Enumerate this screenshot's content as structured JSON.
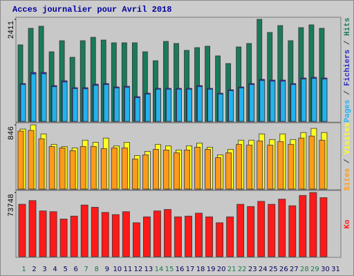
{
  "chart_data": {
    "type": "bar",
    "title": "Acces journalier pour Avril 2018",
    "separator": " / ",
    "categories": [
      "1",
      "2",
      "3",
      "4",
      "5",
      "6",
      "7",
      "8",
      "9",
      "10",
      "11",
      "12",
      "13",
      "14",
      "15",
      "16",
      "17",
      "18",
      "19",
      "20",
      "21",
      "22",
      "23",
      "24",
      "25",
      "26",
      "27",
      "28",
      "29",
      "30",
      "31"
    ],
    "weekend": [
      true,
      false,
      false,
      false,
      false,
      false,
      true,
      true,
      false,
      false,
      false,
      false,
      false,
      true,
      true,
      false,
      false,
      false,
      false,
      false,
      true,
      true,
      false,
      false,
      false,
      false,
      false,
      true,
      true,
      false,
      false
    ],
    "weekend_color": "#1a7a4a",
    "weekday_color": "#000060",
    "panels": [
      {
        "ylim": [
          0,
          2411
        ],
        "yticks": [
          2411
        ],
        "series": [
          {
            "name": "Pages",
            "color": "#22b2ee",
            "values": [
              870,
              1120,
              1125,
              820,
              930,
              775,
              770,
              850,
              870,
              790,
              805,
              560,
              645,
              760,
              760,
              760,
              760,
              820,
              760,
              645,
              725,
              790,
              870,
              965,
              950,
              950,
              870,
              1000,
              1015,
              1000,
              null
            ]
          },
          {
            "name": "Fichiers",
            "color": "#2c2cc8",
            "values": [
              896,
              1157,
              1157,
              847,
              961,
              798,
              798,
              880,
              896,
              815,
              831,
              586,
              668,
              782,
              782,
              782,
              782,
              847,
              782,
              668,
              749,
              815,
              896,
              994,
              977,
              977,
              896,
              1026,
              1043,
              1026,
              null
            ]
          },
          {
            "name": "Hits",
            "color": "#1b7a5c",
            "values": [
              1808,
              2199,
              2248,
              1645,
              1906,
              1515,
              1906,
              1987,
              1922,
              1857,
              1857,
              1857,
              1645,
              1434,
              1890,
              1841,
              1678,
              1743,
              1776,
              1548,
              1368,
              1759,
              1841,
              2411,
              2101,
              2264,
              1906,
              2215,
              2281,
              2199,
              null
            ]
          }
        ]
      },
      {
        "ylim": [
          0,
          846
        ],
        "yticks": [
          846
        ],
        "series": [
          {
            "name": "Sites",
            "color": "#ff9a1a",
            "values": [
              764,
              773,
              663,
              561,
              543,
              506,
              561,
              561,
              534,
              543,
              543,
              396,
              451,
              524,
              515,
              478,
              515,
              552,
              524,
              414,
              478,
              589,
              580,
              635,
              580,
              626,
              589,
              672,
              699,
              644,
              null
            ]
          },
          {
            "name": "Visites",
            "color": "#ffff22",
            "values": [
              791,
              846,
              727,
              589,
              561,
              543,
              644,
              616,
              672,
              570,
              616,
              442,
              497,
              589,
              570,
              515,
              570,
              607,
              552,
              451,
              524,
              644,
              644,
              727,
              653,
              727,
              653,
              745,
              800,
              745,
              null
            ]
          }
        ]
      },
      {
        "ylim": [
          0,
          73748
        ],
        "yticks": [
          73748
        ],
        "series": [
          {
            "name": "Ko",
            "color": "#ff1a1a",
            "values": [
              60208,
              64448,
              52576,
              51728,
              43248,
              46640,
              59360,
              56816,
              50880,
              48336,
              51728,
              39008,
              45792,
              52576,
              54272,
              45792,
              46640,
              50032,
              45792,
              39008,
              45792,
              60208,
              57664,
              63600,
              60208,
              66144,
              58512,
              70384,
              73748,
              67840,
              null
            ]
          }
        ]
      }
    ]
  }
}
